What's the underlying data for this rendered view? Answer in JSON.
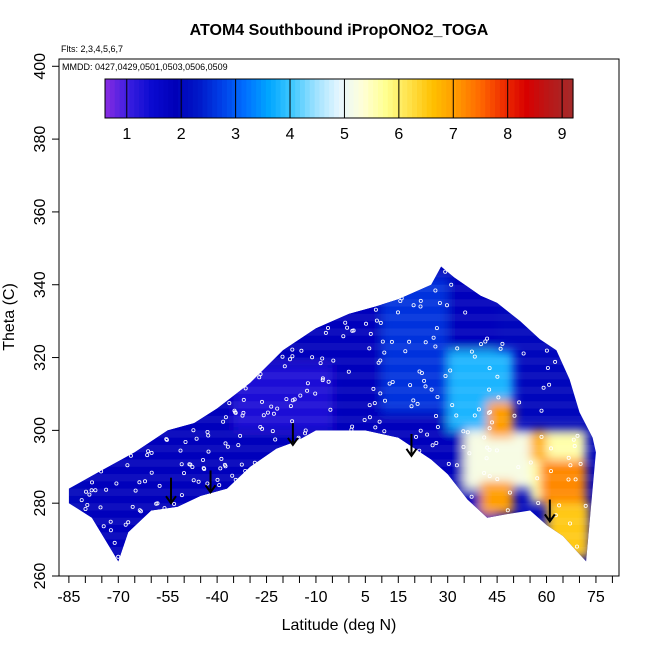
{
  "chart_data": {
    "type": "heatmap",
    "title": "ATOM4 Southbound iPropONO2_TOGA",
    "flights_note": "Flts: 2,3,4,5,6,7",
    "dates_note": "MMDD: 0427,0429,0501,0503,0506,0509",
    "xlabel": "Latitude (deg N)",
    "ylabel": "Theta (C)",
    "xlim": [
      -88,
      82
    ],
    "ylim": [
      260,
      402
    ],
    "x_ticks": [
      -85,
      -70,
      -55,
      -40,
      -25,
      -10,
      5,
      15,
      30,
      45,
      60,
      75
    ],
    "x_minor_ticks": [
      -80,
      -75,
      -65,
      -60,
      -50,
      -45,
      -35,
      -30,
      -20,
      -15,
      -5,
      0,
      10,
      20,
      25,
      35,
      40,
      50,
      55,
      65,
      70,
      80
    ],
    "y_ticks": [
      260,
      280,
      300,
      320,
      340,
      360,
      380,
      400
    ],
    "colorbar": {
      "min": 0.6,
      "max": 9.2,
      "ticks": [
        1,
        2,
        3,
        4,
        5,
        6,
        7,
        8,
        9
      ],
      "colors": [
        "#8a2be2",
        "#3a1ee0",
        "#0a0ad0",
        "#0000b8",
        "#0018c8",
        "#0040e8",
        "#0070ff",
        "#00a6ff",
        "#40c8ff",
        "#9ee2ff",
        "#e6f6ff",
        "#ffffd8",
        "#ffff90",
        "#ffe24a",
        "#ffc000",
        "#ff9a00",
        "#ff6a00",
        "#f03000",
        "#d80000",
        "#b81818",
        "#a52a2a"
      ]
    },
    "upper_envelope": [
      [
        -85,
        284
      ],
      [
        -75,
        289
      ],
      [
        -65,
        294
      ],
      [
        -55,
        300
      ],
      [
        -47,
        302
      ],
      [
        -40,
        306
      ],
      [
        -30,
        313
      ],
      [
        -20,
        322
      ],
      [
        -10,
        328
      ],
      [
        0,
        332
      ],
      [
        8,
        334
      ],
      [
        15,
        336
      ],
      [
        20,
        338
      ],
      [
        25,
        340
      ],
      [
        28,
        345
      ],
      [
        32,
        342
      ],
      [
        40,
        337
      ],
      [
        45,
        335
      ],
      [
        52,
        330
      ],
      [
        58,
        325
      ],
      [
        63,
        322
      ],
      [
        67,
        314
      ],
      [
        70,
        305
      ],
      [
        74,
        298
      ],
      [
        75,
        294
      ]
    ],
    "lower_envelope": [
      [
        -85,
        280
      ],
      [
        -78,
        276
      ],
      [
        -72,
        267
      ],
      [
        -70,
        264
      ],
      [
        -67,
        272
      ],
      [
        -60,
        278
      ],
      [
        -52,
        279
      ],
      [
        -45,
        282
      ],
      [
        -37,
        284
      ],
      [
        -30,
        290
      ],
      [
        -22,
        295
      ],
      [
        -16,
        297
      ],
      [
        -10,
        300
      ],
      [
        -5,
        300
      ],
      [
        0,
        300
      ],
      [
        5,
        300
      ],
      [
        10,
        299
      ],
      [
        15,
        298
      ],
      [
        20,
        295
      ],
      [
        25,
        292
      ],
      [
        30,
        288
      ],
      [
        36,
        281
      ],
      [
        42,
        276
      ],
      [
        48,
        277
      ],
      [
        55,
        278
      ],
      [
        60,
        274
      ],
      [
        65,
        271
      ],
      [
        70,
        266
      ],
      [
        72,
        264
      ]
    ],
    "field_regions": [
      {
        "lat": [
          -80,
          45
        ],
        "theta": [
          262,
          342
        ],
        "value": 2.0
      },
      {
        "lat": [
          -35,
          -5
        ],
        "theta": [
          300,
          318
        ],
        "value": 1.3
      },
      {
        "lat": [
          10,
          30
        ],
        "theta": [
          305,
          342
        ],
        "value": 2.6
      },
      {
        "lat": [
          30,
          50
        ],
        "theta": [
          300,
          322
        ],
        "value": 3.8
      },
      {
        "lat": [
          35,
          58
        ],
        "theta": [
          284,
          300
        ],
        "value": 5.2
      },
      {
        "lat": [
          42,
          50
        ],
        "theta": [
          298,
          308
        ],
        "value": 7.0
      },
      {
        "lat": [
          55,
          72
        ],
        "theta": [
          280,
          300
        ],
        "value": 5.6
      },
      {
        "lat": [
          58,
          72
        ],
        "theta": [
          280,
          292
        ],
        "value": 7.2
      },
      {
        "lat": [
          55,
          60
        ],
        "theta": [
          292,
          300
        ],
        "value": 6.8
      },
      {
        "lat": [
          40,
          50
        ],
        "theta": [
          277,
          286
        ],
        "value": 7.0
      },
      {
        "lat": [
          60,
          73
        ],
        "theta": [
          265,
          280
        ],
        "value": 6.5
      }
    ],
    "arrows": [
      {
        "lat": -54,
        "theta_from": 287,
        "theta_to": 280
      },
      {
        "lat": -42,
        "theta_from": 289,
        "theta_to": 283
      },
      {
        "lat": -17,
        "theta_from": 302,
        "theta_to": 296
      },
      {
        "lat": 19,
        "theta_from": 299,
        "theta_to": 293
      },
      {
        "lat": 61,
        "theta_from": 281,
        "theta_to": 275
      }
    ]
  }
}
